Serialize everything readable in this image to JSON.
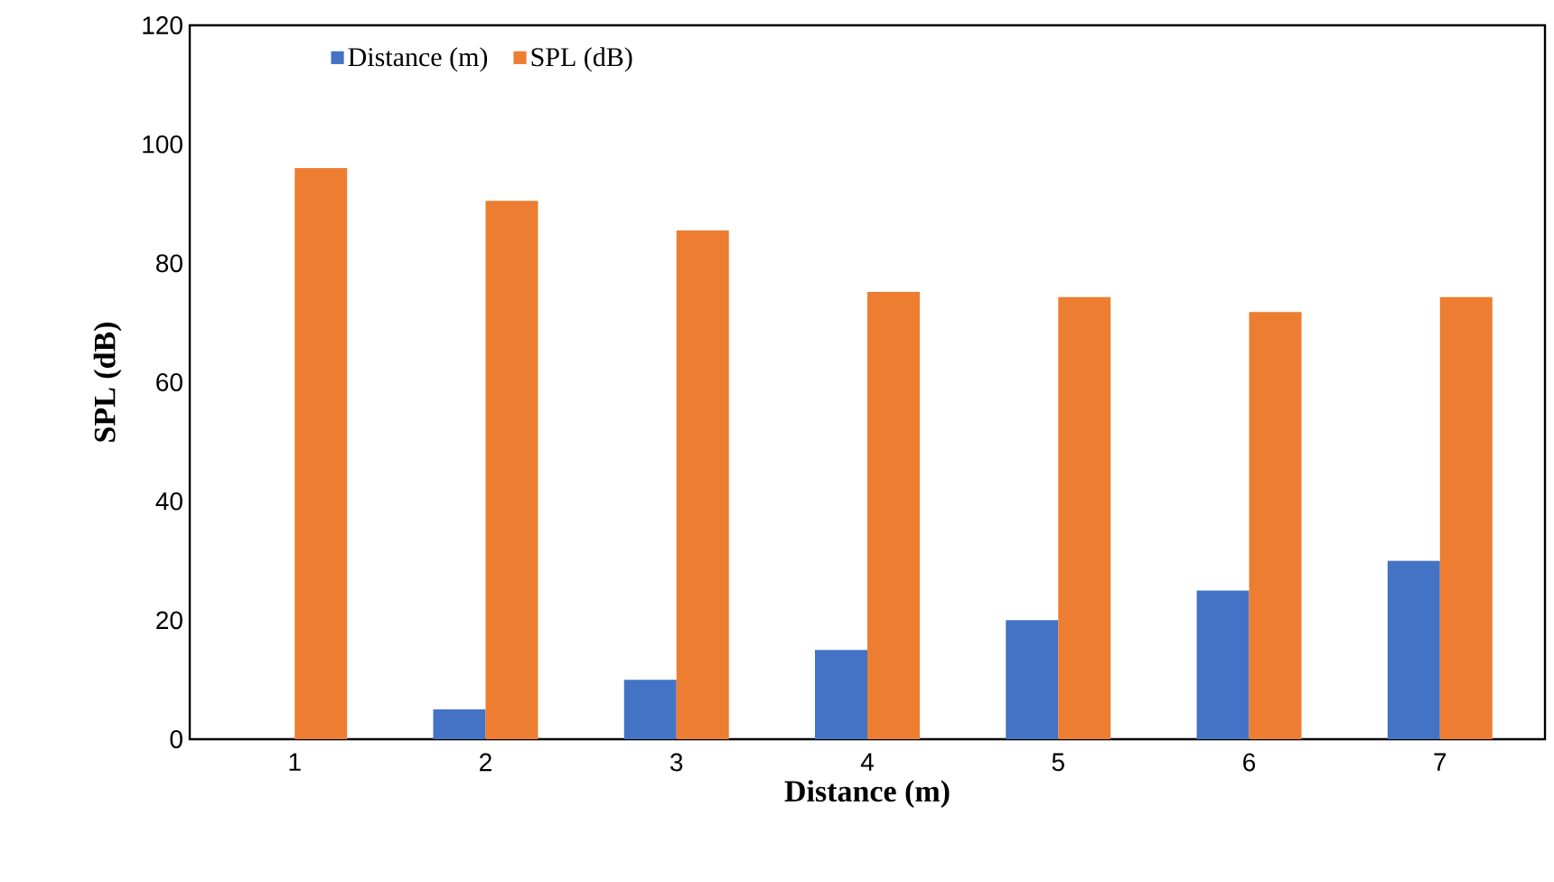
{
  "chart_data": {
    "type": "bar",
    "xlabel": "Distance (m)",
    "ylabel": "SPL (dB)",
    "categories": [
      "1",
      "2",
      "3",
      "4",
      "5",
      "6",
      "7"
    ],
    "series": [
      {
        "name": "Distance (m)",
        "color": "#4472c4",
        "values": [
          0,
          5,
          10,
          15,
          20,
          25,
          30
        ]
      },
      {
        "name": "SPL (dB)",
        "color": "#ed7d31",
        "values": [
          96,
          90.5,
          85.5,
          75.2,
          74.3,
          71.8,
          74.3
        ]
      }
    ],
    "ylim": [
      0,
      120
    ],
    "yticks": [
      0,
      20,
      40,
      60,
      80,
      100,
      120
    ],
    "grid": false,
    "legend": "top left"
  }
}
